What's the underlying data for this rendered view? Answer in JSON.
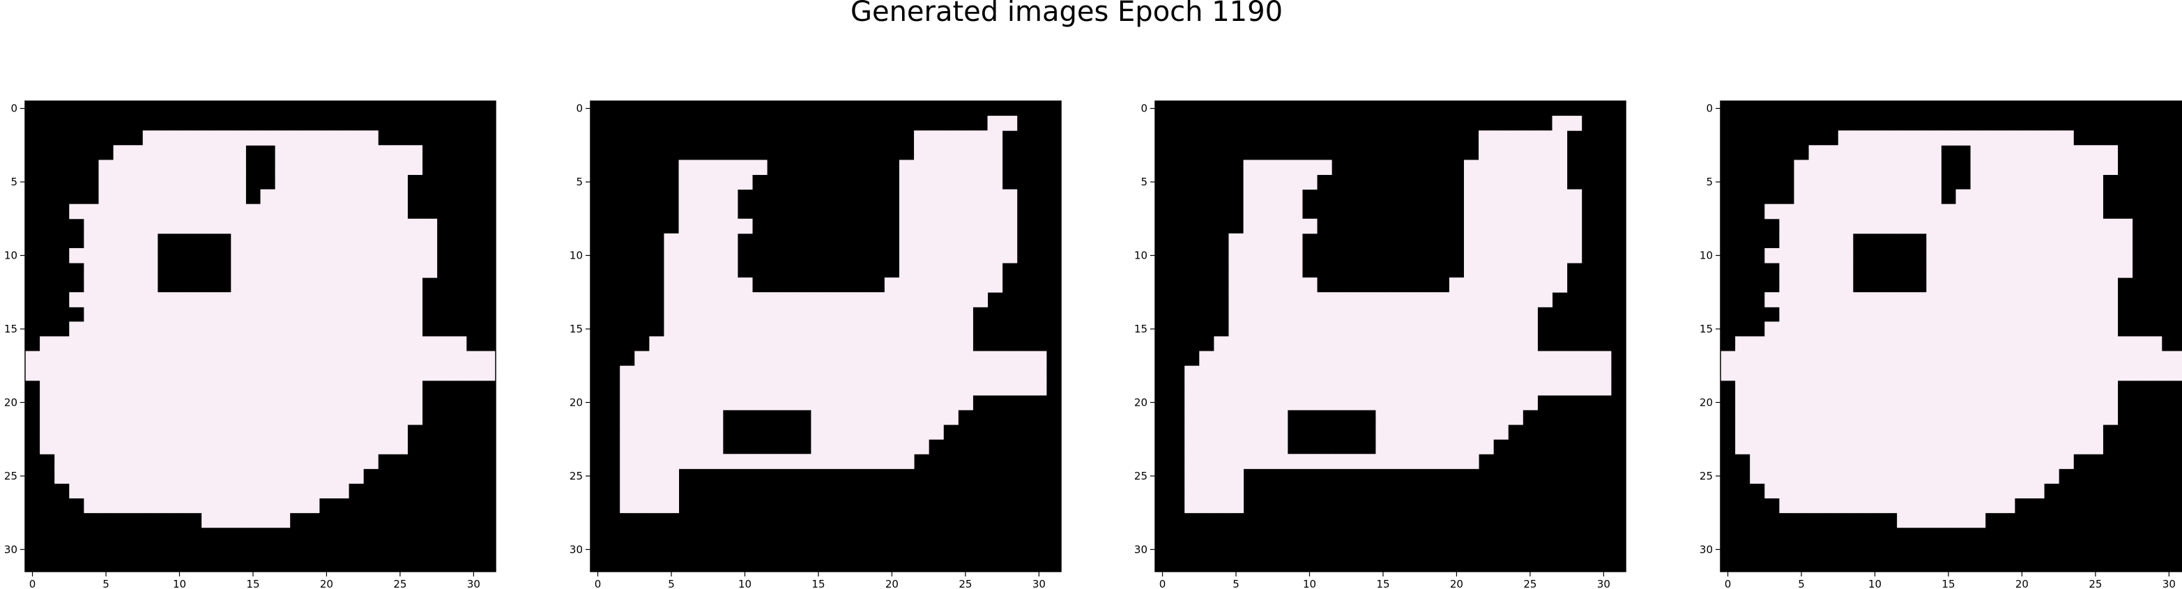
{
  "figure": {
    "title": "Generated images Epoch 1190",
    "background": "#ffffff"
  },
  "chart_data": [
    {
      "type": "heatmap",
      "rows": 32,
      "cols": 32,
      "background_color": "#000000",
      "foreground_color": "#f9eef6",
      "x_ticks": [
        "0",
        "5",
        "10",
        "15",
        "20",
        "25",
        "30"
      ],
      "y_ticks": [
        "0",
        "5",
        "10",
        "15",
        "20",
        "25",
        "30"
      ],
      "xlim": [
        -0.5,
        31.5
      ],
      "ylim": [
        31.5,
        -0.5
      ],
      "mask": [
        "00000000000000000000000000000000",
        "00000000000000000000000000000000",
        "00000000111111111111111100000000",
        "00000011111111100111111111100000",
        "00000111111111100111111111100000",
        "00000111111111100111111111000000",
        "00000111111111101111111111000000",
        "00011111111111111111111111000000",
        "00001111111111111111111111110000",
        "00001111100000111111111111110000",
        "00011111100000111111111111110000",
        "00001111100000111111111111110000",
        "00001111100000111111111111100000",
        "00011111111111111111111111100000",
        "00001111111111111111111111100000",
        "00011111111111111111111111100000",
        "01111111111111111111111111111100",
        "11111111111111111111111111111111",
        "11111111111111111111111111111111",
        "01111111111111111111111111100000",
        "01111111111111111111111111100000",
        "01111111111111111111111111100000",
        "01111111111111111111111111000000",
        "01111111111111111111111111000000",
        "00111111111111111111111100000000",
        "00111111111111111111111000000000",
        "00011111111111111111110000000000",
        "00001111111111111111000000000000",
        "00000000000011111100000000000000",
        "00000000000000000000000000000000",
        "00000000000000000000000000000000",
        "00000000000000000000000000000000"
      ]
    },
    {
      "type": "heatmap",
      "rows": 32,
      "cols": 32,
      "background_color": "#000000",
      "foreground_color": "#f9eef6",
      "x_ticks": [
        "0",
        "5",
        "10",
        "15",
        "20",
        "25",
        "30"
      ],
      "y_ticks": [
        "0",
        "5",
        "10",
        "15",
        "20",
        "25",
        "30"
      ],
      "xlim": [
        -0.5,
        31.5
      ],
      "ylim": [
        31.5,
        -0.5
      ],
      "mask": [
        "00000000000000000000000000000000",
        "00000000000000000000000000011000",
        "00000000000000000000001111110000",
        "00000000000000000000001111110000",
        "00000011111100000000011111110000",
        "00000011111000000000011111110000",
        "00000011110000000000011111111000",
        "00000011110000000000011111111000",
        "00000011111000000000011111111000",
        "00000111110000000000011111111000",
        "00000111110000000000011111111000",
        "00000111110000000000011111110000",
        "00000111111000000000111111110000",
        "00000111111111111111111111100000",
        "00000111111111111111111111000000",
        "00000111111111111111111111000000",
        "00001111111111111111111111000000",
        "00011111111111111111111111111110",
        "00111111111111111111111111111110",
        "00111111111111111111111111111110",
        "00111111111111111111111111000000",
        "00111111100000011111111110000000",
        "00111111100000011111111100000000",
        "00111111100000011111111000000000",
        "00111111111111111111110000000000",
        "00111100000000000000000000000000",
        "00111100000000000000000000000000",
        "00111100000000000000000000000000",
        "00000000000000000000000000000000",
        "00000000000000000000000000000000",
        "00000000000000000000000000000000",
        "00000000000000000000000000000000"
      ]
    },
    {
      "type": "heatmap",
      "rows": 32,
      "cols": 32,
      "background_color": "#000000",
      "foreground_color": "#f9eef6",
      "x_ticks": [
        "0",
        "5",
        "10",
        "15",
        "20",
        "25",
        "30"
      ],
      "y_ticks": [
        "0",
        "5",
        "10",
        "15",
        "20",
        "25",
        "30"
      ],
      "xlim": [
        -0.5,
        31.5
      ],
      "ylim": [
        31.5,
        -0.5
      ],
      "mask": [
        "00000000000000000000000000000000",
        "00000000000000000000000000011000",
        "00000000000000000000001111110000",
        "00000000000000000000001111110000",
        "00000011111100000000011111110000",
        "00000011111000000000011111110000",
        "00000011110000000000011111111000",
        "00000011110000000000011111111000",
        "00000011111000000000011111111000",
        "00000111110000000000011111111000",
        "00000111110000000000011111111000",
        "00000111110000000000011111110000",
        "00000111111000000000111111110000",
        "00000111111111111111111111100000",
        "00000111111111111111111111000000",
        "00000111111111111111111111000000",
        "00001111111111111111111111000000",
        "00011111111111111111111111111110",
        "00111111111111111111111111111110",
        "00111111111111111111111111111110",
        "00111111111111111111111111000000",
        "00111111100000011111111110000000",
        "00111111100000011111111100000000",
        "00111111100000011111111000000000",
        "00111111111111111111110000000000",
        "00111100000000000000000000000000",
        "00111100000000000000000000000000",
        "00111100000000000000000000000000",
        "00000000000000000000000000000000",
        "00000000000000000000000000000000",
        "00000000000000000000000000000000",
        "00000000000000000000000000000000"
      ]
    },
    {
      "type": "heatmap",
      "rows": 32,
      "cols": 32,
      "background_color": "#000000",
      "foreground_color": "#f9eef6",
      "x_ticks": [
        "0",
        "5",
        "10",
        "15",
        "20",
        "25",
        "30"
      ],
      "y_ticks": [
        "0",
        "5",
        "10",
        "15",
        "20",
        "25",
        "30"
      ],
      "xlim": [
        -0.5,
        31.5
      ],
      "ylim": [
        31.5,
        -0.5
      ],
      "mask": [
        "00000000000000000000000000000000",
        "00000000000000000000000000000000",
        "00000000111111111111111100000000",
        "00000011111111100111111111100000",
        "00000111111111100111111111100000",
        "00000111111111100111111111000000",
        "00000111111111101111111111000000",
        "00011111111111111111111111000000",
        "00001111111111111111111111110000",
        "00001111100000111111111111110000",
        "00011111100000111111111111110000",
        "00001111100000111111111111110000",
        "00001111100000111111111111100000",
        "00011111111111111111111111100000",
        "00001111111111111111111111100000",
        "00011111111111111111111111100000",
        "01111111111111111111111111111100",
        "11111111111111111111111111111111",
        "11111111111111111111111111111111",
        "01111111111111111111111111100000",
        "01111111111111111111111111100000",
        "01111111111111111111111111100000",
        "01111111111111111111111111000000",
        "01111111111111111111111111000000",
        "00111111111111111111111100000000",
        "00111111111111111111111000000000",
        "00011111111111111111110000000000",
        "00001111111111111111000000000000",
        "00000000000011111100000000000000",
        "00000000000000000000000000000000",
        "00000000000000000000000000000000",
        "00000000000000000000000000000000"
      ]
    }
  ]
}
